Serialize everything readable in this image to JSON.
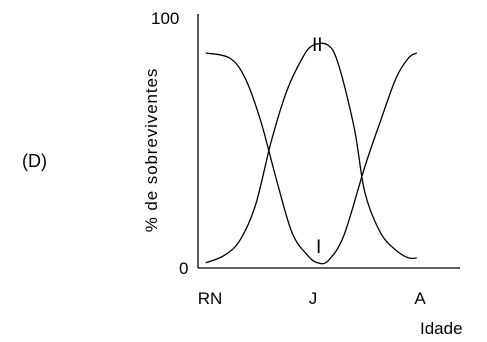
{
  "panel_label": "(D)",
  "chart_data": {
    "type": "line",
    "ylabel": "% de sobreviventes",
    "xlabel": "Idade",
    "categories": [
      "RN",
      "J",
      "A"
    ],
    "y_ticks": [
      "0",
      "100"
    ],
    "ylim": [
      0,
      100
    ],
    "grid": false,
    "series": [
      {
        "name": "I",
        "points": [
          [
            -0.08,
            85
          ],
          [
            0.15,
            83
          ],
          [
            0.3,
            75
          ],
          [
            0.45,
            58
          ],
          [
            0.6,
            35
          ],
          [
            0.75,
            14
          ],
          [
            0.9,
            5
          ],
          [
            1.0,
            2
          ],
          [
            1.1,
            3
          ],
          [
            1.25,
            13
          ],
          [
            1.45,
            40
          ],
          [
            1.6,
            58
          ],
          [
            1.75,
            75
          ],
          [
            1.87,
            83
          ],
          [
            1.95,
            85
          ]
        ]
      },
      {
        "name": "II",
        "points": [
          [
            -0.08,
            2
          ],
          [
            0.1,
            5
          ],
          [
            0.25,
            11
          ],
          [
            0.4,
            25
          ],
          [
            0.55,
            50
          ],
          [
            0.7,
            70
          ],
          [
            0.85,
            83
          ],
          [
            0.95,
            88
          ],
          [
            1.1,
            88
          ],
          [
            1.2,
            80
          ],
          [
            1.35,
            55
          ],
          [
            1.45,
            30
          ],
          [
            1.6,
            14
          ],
          [
            1.75,
            7
          ],
          [
            1.87,
            4
          ],
          [
            1.95,
            4
          ]
        ]
      }
    ]
  }
}
